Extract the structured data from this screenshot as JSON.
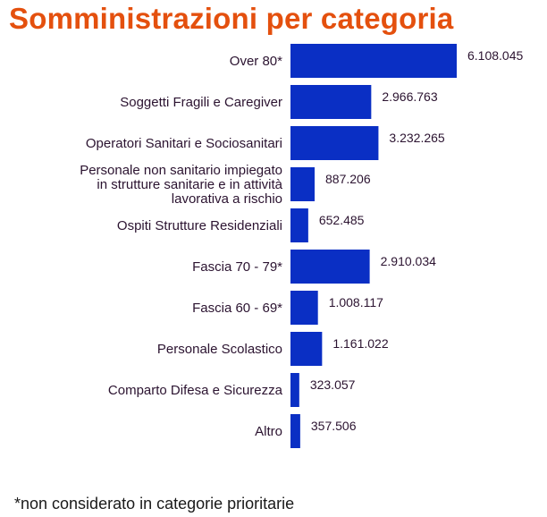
{
  "title": "Somministrazioni per categoria",
  "footnote": "*non considerato in categorie prioritarie",
  "colors": {
    "title": "#e4500e",
    "bar": "#0a2fc4",
    "text": "#2b1330"
  },
  "chart_data": {
    "type": "bar",
    "orientation": "horizontal",
    "title": "Somministrazioni per categoria",
    "categories": [
      "Over 80*",
      "Soggetti Fragili e Caregiver",
      "Operatori Sanitari e Sociosanitari",
      "Personale non sanitario impiegato\nin strutture sanitarie e in attività\nlavorativa a rischio",
      "Ospiti Strutture Residenziali",
      "Fascia 70 - 79*",
      "Fascia 60 - 69*",
      "Personale Scolastico",
      "Comparto Difesa e Sicurezza",
      "Altro"
    ],
    "values": [
      6108045,
      2966763,
      3232265,
      887206,
      652485,
      2910034,
      1008117,
      1161022,
      323057,
      357506
    ],
    "data_labels": [
      "6.108.045",
      "2.966.763",
      "3.232.265",
      "887.206",
      "652.485",
      "2.910.034",
      "1.008.117",
      "1.161.022",
      "323.057",
      "357.506"
    ],
    "grid": false,
    "legend": "none"
  }
}
